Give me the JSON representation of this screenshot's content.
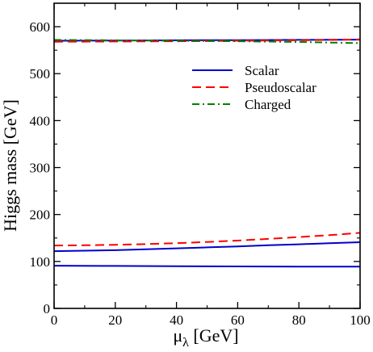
{
  "chart_data": {
    "type": "line",
    "xlabel": "μ",
    "xlabel_sub": "λ",
    "xlabel_unit": " [GeV]",
    "ylabel": "Higgs mass [GeV]",
    "xlim": [
      0,
      100
    ],
    "ylim": [
      0,
      650
    ],
    "xticks": [
      "0",
      "20",
      "40",
      "60",
      "80",
      "100"
    ],
    "yticks": [
      "0",
      "100",
      "200",
      "300",
      "400",
      "500",
      "600"
    ],
    "grid": false,
    "legend_position": "upper-right",
    "series": [
      {
        "name": "Scalar",
        "color": "#0000cc",
        "dash": "solid",
        "show_in_legend": true,
        "x": [
          0,
          10,
          20,
          30,
          40,
          50,
          60,
          70,
          80,
          90,
          100
        ],
        "y": [
          122,
          123,
          124,
          126,
          128,
          130,
          132,
          134.5,
          136.5,
          139,
          141
        ]
      },
      {
        "name": "Scalar",
        "color": "#0000cc",
        "dash": "solid",
        "show_in_legend": false,
        "x": [
          0,
          20,
          40,
          60,
          80,
          100
        ],
        "y": [
          91,
          90.5,
          90,
          89.5,
          89,
          89
        ]
      },
      {
        "name": "Scalar",
        "color": "#0000cc",
        "dash": "solid",
        "show_in_legend": false,
        "x": [
          0,
          20,
          40,
          60,
          80,
          100
        ],
        "y": [
          570,
          570.5,
          571,
          571.5,
          572,
          572.5
        ]
      },
      {
        "name": "Pseudoscalar",
        "color": "#ff0000",
        "dash": "dashed",
        "show_in_legend": true,
        "x": [
          0,
          10,
          20,
          30,
          40,
          50,
          60,
          70,
          80,
          90,
          100
        ],
        "y": [
          134,
          134.5,
          135.5,
          137,
          139,
          141.5,
          144.5,
          148,
          152,
          156,
          161
        ]
      },
      {
        "name": "Pseudoscalar",
        "color": "#ff0000",
        "dash": "dashed",
        "show_in_legend": false,
        "x": [
          0,
          20,
          40,
          60,
          80,
          100
        ],
        "y": [
          568,
          568.5,
          569,
          570,
          571,
          573
        ]
      },
      {
        "name": "Charged",
        "color": "#008000",
        "dash": "dashdot",
        "show_in_legend": true,
        "x": [
          0,
          20,
          40,
          60,
          80,
          100
        ],
        "y": [
          572,
          571,
          570,
          569,
          567.5,
          565
        ]
      }
    ]
  }
}
